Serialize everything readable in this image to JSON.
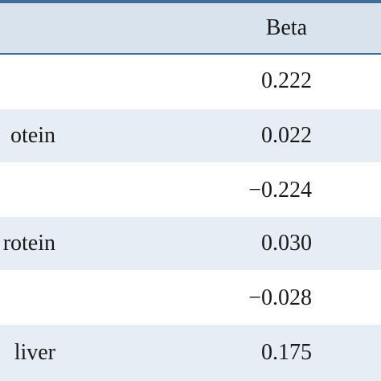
{
  "table": {
    "header": {
      "beta": "Beta"
    },
    "rows": [
      {
        "label": "",
        "beta": "0.222",
        "shaded": false
      },
      {
        "label": "otein",
        "beta": "0.022",
        "shaded": true
      },
      {
        "label": "",
        "beta": "−0.224",
        "shaded": false
      },
      {
        "label": "rotein",
        "beta": "0.030",
        "shaded": true
      },
      {
        "label": "",
        "beta": "−0.028",
        "shaded": false
      },
      {
        "label": "liver",
        "beta": "0.175",
        "shaded": true
      }
    ]
  }
}
